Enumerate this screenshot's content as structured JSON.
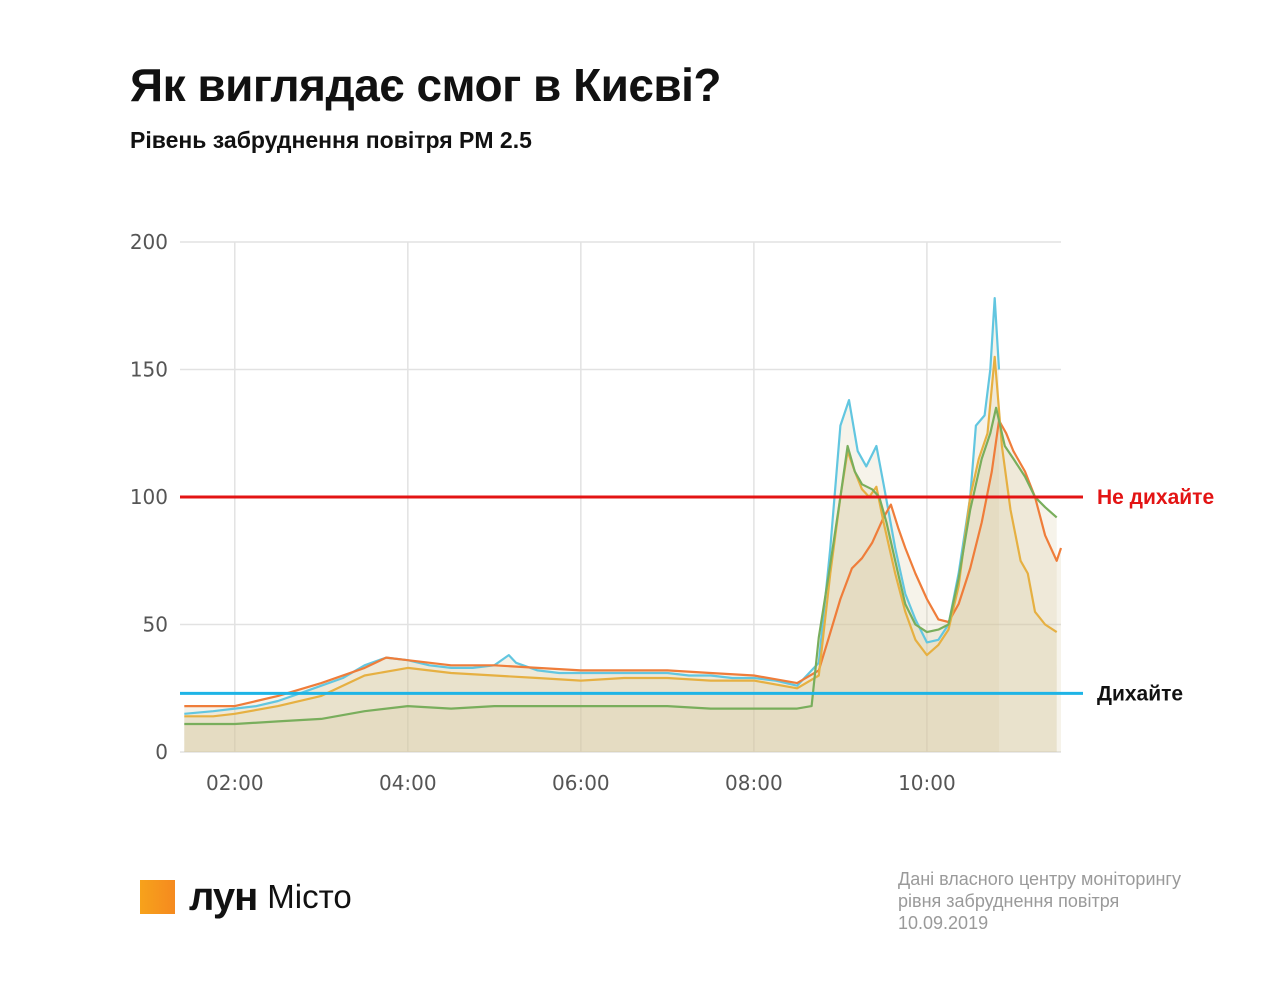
{
  "header": {
    "title": "Як виглядає смог в Києві?",
    "subtitle": "Рівень забруднення повітря PM 2.5"
  },
  "footer": {
    "logo_brand": "ЛУН",
    "logo_sub": "Місто",
    "source_lines": [
      "Дані власного центру моніторингу",
      "рівня забруднення повітря",
      "10.09.2019"
    ]
  },
  "chart_data": {
    "type": "area",
    "title": "",
    "xlabel": "",
    "ylabel": "",
    "xlim": [
      "01:22",
      "11:33"
    ],
    "ylim": [
      0,
      200
    ],
    "yticks": [
      0,
      50,
      100,
      150,
      200
    ],
    "xticks": [
      "02:00",
      "04:00",
      "06:00",
      "08:00",
      "10:00"
    ],
    "grid": true,
    "reference_lines": [
      {
        "value": 100,
        "label": "Не дихайте",
        "color": "#e31414"
      },
      {
        "value": 23,
        "label": "Дихайте",
        "color": "#1eb4e6"
      }
    ],
    "series": [
      {
        "color": "#62c6e0",
        "points": [
          [
            "01:25",
            15
          ],
          [
            "01:45",
            16
          ],
          [
            "02:00",
            17
          ],
          [
            "02:15",
            18
          ],
          [
            "02:30",
            20
          ],
          [
            "02:45",
            23
          ],
          [
            "03:00",
            26
          ],
          [
            "03:15",
            29
          ],
          [
            "03:30",
            34
          ],
          [
            "03:45",
            37
          ],
          [
            "04:00",
            36
          ],
          [
            "04:15",
            34
          ],
          [
            "04:30",
            33
          ],
          [
            "04:45",
            33
          ],
          [
            "05:00",
            34
          ],
          [
            "05:10",
            38
          ],
          [
            "05:15",
            35
          ],
          [
            "05:30",
            32
          ],
          [
            "05:45",
            31
          ],
          [
            "06:00",
            31
          ],
          [
            "06:30",
            31
          ],
          [
            "07:00",
            31
          ],
          [
            "07:15",
            30
          ],
          [
            "07:30",
            30
          ],
          [
            "07:45",
            29
          ],
          [
            "08:00",
            29
          ],
          [
            "08:15",
            28
          ],
          [
            "08:30",
            26
          ],
          [
            "08:45",
            35
          ],
          [
            "08:53",
            80
          ],
          [
            "09:00",
            128
          ],
          [
            "09:06",
            138
          ],
          [
            "09:12",
            118
          ],
          [
            "09:18",
            112
          ],
          [
            "09:25",
            120
          ],
          [
            "09:30",
            105
          ],
          [
            "09:38",
            80
          ],
          [
            "09:45",
            62
          ],
          [
            "09:52",
            52
          ],
          [
            "10:00",
            43
          ],
          [
            "10:08",
            44
          ],
          [
            "10:15",
            50
          ],
          [
            "10:22",
            70
          ],
          [
            "10:30",
            100
          ],
          [
            "10:34",
            128
          ],
          [
            "10:40",
            132
          ],
          [
            "10:44",
            150
          ],
          [
            "10:47",
            178
          ],
          [
            "10:50",
            150
          ]
        ]
      },
      {
        "color": "#ef7d3a",
        "points": [
          [
            "01:25",
            18
          ],
          [
            "01:45",
            18
          ],
          [
            "02:00",
            18
          ],
          [
            "02:30",
            22
          ],
          [
            "03:00",
            27
          ],
          [
            "03:30",
            33
          ],
          [
            "03:45",
            37
          ],
          [
            "04:00",
            36
          ],
          [
            "04:30",
            34
          ],
          [
            "05:00",
            34
          ],
          [
            "05:30",
            33
          ],
          [
            "06:00",
            32
          ],
          [
            "06:30",
            32
          ],
          [
            "07:00",
            32
          ],
          [
            "07:30",
            31
          ],
          [
            "08:00",
            30
          ],
          [
            "08:30",
            27
          ],
          [
            "08:45",
            32
          ],
          [
            "08:52",
            45
          ],
          [
            "09:00",
            60
          ],
          [
            "09:08",
            72
          ],
          [
            "09:15",
            76
          ],
          [
            "09:22",
            82
          ],
          [
            "09:30",
            92
          ],
          [
            "09:35",
            97
          ],
          [
            "09:40",
            88
          ],
          [
            "09:45",
            80
          ],
          [
            "09:52",
            70
          ],
          [
            "10:00",
            60
          ],
          [
            "10:08",
            52
          ],
          [
            "10:15",
            51
          ],
          [
            "10:22",
            58
          ],
          [
            "10:30",
            72
          ],
          [
            "10:38",
            90
          ],
          [
            "10:45",
            110
          ],
          [
            "10:50",
            130
          ],
          [
            "10:55",
            125
          ],
          [
            "11:00",
            118
          ],
          [
            "11:08",
            110
          ],
          [
            "11:15",
            100
          ],
          [
            "11:22",
            85
          ],
          [
            "11:30",
            75
          ],
          [
            "11:33",
            80
          ]
        ]
      },
      {
        "color": "#e6b042",
        "points": [
          [
            "01:25",
            14
          ],
          [
            "01:45",
            14
          ],
          [
            "02:00",
            15
          ],
          [
            "02:30",
            18
          ],
          [
            "03:00",
            22
          ],
          [
            "03:30",
            30
          ],
          [
            "04:00",
            33
          ],
          [
            "04:30",
            31
          ],
          [
            "05:00",
            30
          ],
          [
            "05:30",
            29
          ],
          [
            "06:00",
            28
          ],
          [
            "06:30",
            29
          ],
          [
            "07:00",
            29
          ],
          [
            "07:30",
            28
          ],
          [
            "08:00",
            28
          ],
          [
            "08:30",
            25
          ],
          [
            "08:45",
            30
          ],
          [
            "08:53",
            70
          ],
          [
            "09:00",
            100
          ],
          [
            "09:05",
            118
          ],
          [
            "09:10",
            110
          ],
          [
            "09:15",
            103
          ],
          [
            "09:20",
            100
          ],
          [
            "09:25",
            104
          ],
          [
            "09:30",
            90
          ],
          [
            "09:38",
            70
          ],
          [
            "09:45",
            55
          ],
          [
            "09:52",
            44
          ],
          [
            "10:00",
            38
          ],
          [
            "10:08",
            42
          ],
          [
            "10:15",
            48
          ],
          [
            "10:22",
            65
          ],
          [
            "10:30",
            100
          ],
          [
            "10:36",
            115
          ],
          [
            "10:42",
            125
          ],
          [
            "10:47",
            155
          ],
          [
            "10:52",
            120
          ],
          [
            "10:58",
            95
          ],
          [
            "11:05",
            75
          ],
          [
            "11:10",
            70
          ],
          [
            "11:15",
            55
          ],
          [
            "11:22",
            50
          ],
          [
            "11:30",
            47
          ]
        ]
      },
      {
        "color": "#79ae5c",
        "points": [
          [
            "01:25",
            11
          ],
          [
            "01:45",
            11
          ],
          [
            "02:00",
            11
          ],
          [
            "02:30",
            12
          ],
          [
            "03:00",
            13
          ],
          [
            "03:30",
            16
          ],
          [
            "04:00",
            18
          ],
          [
            "04:30",
            17
          ],
          [
            "05:00",
            18
          ],
          [
            "05:30",
            18
          ],
          [
            "06:00",
            18
          ],
          [
            "06:30",
            18
          ],
          [
            "07:00",
            18
          ],
          [
            "07:30",
            17
          ],
          [
            "08:00",
            17
          ],
          [
            "08:30",
            17
          ],
          [
            "08:40",
            18
          ],
          [
            "08:45",
            45
          ],
          [
            "08:52",
            70
          ],
          [
            "09:00",
            100
          ],
          [
            "09:05",
            120
          ],
          [
            "09:10",
            110
          ],
          [
            "09:15",
            105
          ],
          [
            "09:22",
            103
          ],
          [
            "09:27",
            100
          ],
          [
            "09:32",
            90
          ],
          [
            "09:40",
            70
          ],
          [
            "09:45",
            58
          ],
          [
            "09:52",
            50
          ],
          [
            "10:00",
            47
          ],
          [
            "10:08",
            48
          ],
          [
            "10:15",
            50
          ],
          [
            "10:22",
            68
          ],
          [
            "10:30",
            95
          ],
          [
            "10:38",
            115
          ],
          [
            "10:44",
            125
          ],
          [
            "10:48",
            135
          ],
          [
            "10:54",
            120
          ],
          [
            "11:00",
            115
          ],
          [
            "11:08",
            108
          ],
          [
            "11:15",
            100
          ],
          [
            "11:22",
            96
          ],
          [
            "11:30",
            92
          ]
        ]
      }
    ]
  }
}
